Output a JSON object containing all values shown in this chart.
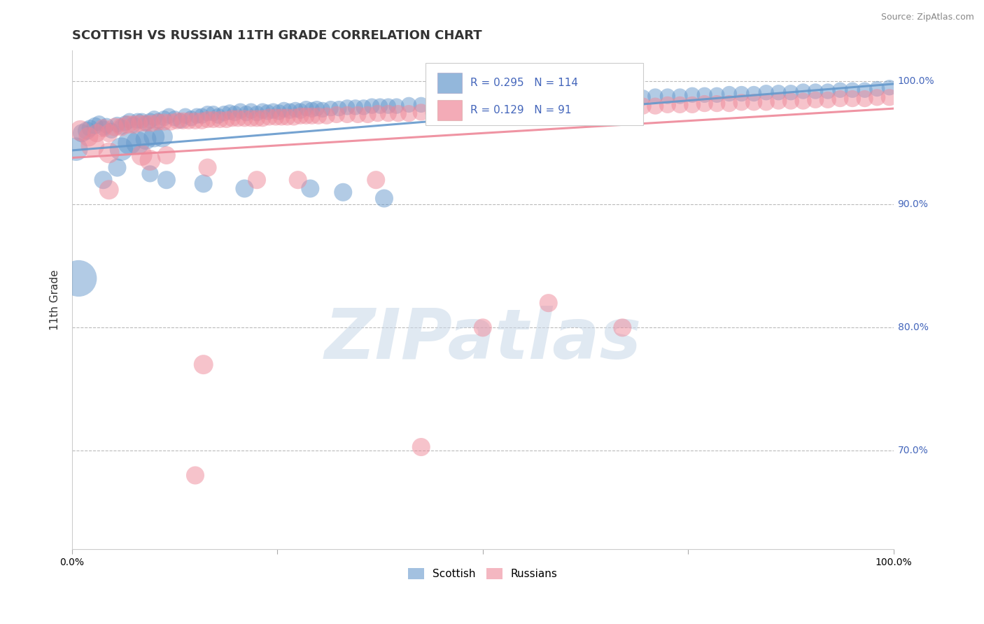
{
  "title": "SCOTTISH VS RUSSIAN 11TH GRADE CORRELATION CHART",
  "source_text": "Source: ZipAtlas.com",
  "ylabel": "11th Grade",
  "xlim": [
    0.0,
    1.0
  ],
  "ylim": [
    0.62,
    1.025
  ],
  "yticks": [
    0.7,
    0.8,
    0.9,
    1.0
  ],
  "ytick_labels": [
    "70.0%",
    "80.0%",
    "90.0%",
    "100.0%"
  ],
  "xticks": [
    0.0,
    0.25,
    0.5,
    0.75,
    1.0
  ],
  "xtick_labels": [
    "0.0%",
    "",
    "",
    "",
    "100.0%"
  ],
  "legend_entries": [
    {
      "label": "Scottish",
      "color": "#6699cc",
      "R": 0.295,
      "N": 114
    },
    {
      "label": "Russians",
      "color": "#ee8899",
      "R": 0.129,
      "N": 91
    }
  ],
  "trend_line_blue": {
    "x0": 0.0,
    "x1": 1.0,
    "y0": 0.944,
    "y1": 0.998
  },
  "trend_line_pink": {
    "x0": 0.0,
    "x1": 1.0,
    "y0": 0.938,
    "y1": 0.978
  },
  "blue_color": "#6699cc",
  "pink_color": "#ee8899",
  "scatter_alpha": 0.5,
  "watermark_text": "ZIPatlas",
  "watermark_color": "#c8d8e8",
  "watermark_alpha": 0.55,
  "bg_color": "#ffffff",
  "grid_color": "#bbbbbb",
  "legend_color": "#4466bb",
  "source_fontsize": 9,
  "title_fontsize": 13,
  "scottish_data": [
    [
      0.005,
      0.945,
      18
    ],
    [
      0.012,
      0.958,
      14
    ],
    [
      0.018,
      0.96,
      14
    ],
    [
      0.022,
      0.962,
      13
    ],
    [
      0.028,
      0.964,
      13
    ],
    [
      0.033,
      0.966,
      12
    ],
    [
      0.038,
      0.962,
      12
    ],
    [
      0.042,
      0.964,
      12
    ],
    [
      0.048,
      0.96,
      12
    ],
    [
      0.055,
      0.965,
      12
    ],
    [
      0.06,
      0.963,
      12
    ],
    [
      0.065,
      0.966,
      12
    ],
    [
      0.07,
      0.968,
      12
    ],
    [
      0.075,
      0.965,
      12
    ],
    [
      0.08,
      0.968,
      12
    ],
    [
      0.085,
      0.968,
      12
    ],
    [
      0.09,
      0.966,
      12
    ],
    [
      0.095,
      0.968,
      12
    ],
    [
      0.1,
      0.97,
      12
    ],
    [
      0.105,
      0.968,
      12
    ],
    [
      0.112,
      0.97,
      12
    ],
    [
      0.118,
      0.972,
      12
    ],
    [
      0.125,
      0.97,
      12
    ],
    [
      0.132,
      0.968,
      12
    ],
    [
      0.138,
      0.972,
      12
    ],
    [
      0.145,
      0.97,
      12
    ],
    [
      0.152,
      0.972,
      12
    ],
    [
      0.158,
      0.972,
      12
    ],
    [
      0.165,
      0.974,
      12
    ],
    [
      0.172,
      0.974,
      12
    ],
    [
      0.178,
      0.972,
      12
    ],
    [
      0.185,
      0.974,
      12
    ],
    [
      0.192,
      0.975,
      12
    ],
    [
      0.198,
      0.974,
      12
    ],
    [
      0.205,
      0.976,
      12
    ],
    [
      0.212,
      0.974,
      12
    ],
    [
      0.218,
      0.976,
      12
    ],
    [
      0.225,
      0.974,
      12
    ],
    [
      0.232,
      0.976,
      12
    ],
    [
      0.238,
      0.975,
      12
    ],
    [
      0.245,
      0.976,
      12
    ],
    [
      0.252,
      0.975,
      12
    ],
    [
      0.258,
      0.977,
      12
    ],
    [
      0.265,
      0.976,
      12
    ],
    [
      0.272,
      0.977,
      12
    ],
    [
      0.278,
      0.976,
      12
    ],
    [
      0.285,
      0.978,
      12
    ],
    [
      0.292,
      0.977,
      12
    ],
    [
      0.298,
      0.978,
      12
    ],
    [
      0.305,
      0.977,
      12
    ],
    [
      0.315,
      0.978,
      12
    ],
    [
      0.325,
      0.978,
      12
    ],
    [
      0.335,
      0.979,
      12
    ],
    [
      0.345,
      0.979,
      12
    ],
    [
      0.355,
      0.979,
      12
    ],
    [
      0.365,
      0.98,
      12
    ],
    [
      0.375,
      0.98,
      12
    ],
    [
      0.385,
      0.98,
      12
    ],
    [
      0.395,
      0.98,
      12
    ],
    [
      0.41,
      0.981,
      12
    ],
    [
      0.425,
      0.981,
      12
    ],
    [
      0.44,
      0.982,
      12
    ],
    [
      0.455,
      0.982,
      12
    ],
    [
      0.47,
      0.982,
      12
    ],
    [
      0.485,
      0.982,
      12
    ],
    [
      0.5,
      0.983,
      12
    ],
    [
      0.515,
      0.983,
      12
    ],
    [
      0.53,
      0.984,
      12
    ],
    [
      0.545,
      0.984,
      12
    ],
    [
      0.56,
      0.984,
      12
    ],
    [
      0.575,
      0.985,
      12
    ],
    [
      0.59,
      0.985,
      12
    ],
    [
      0.605,
      0.985,
      12
    ],
    [
      0.62,
      0.986,
      12
    ],
    [
      0.635,
      0.986,
      12
    ],
    [
      0.65,
      0.986,
      12
    ],
    [
      0.665,
      0.987,
      12
    ],
    [
      0.68,
      0.987,
      12
    ],
    [
      0.695,
      0.987,
      12
    ],
    [
      0.71,
      0.988,
      12
    ],
    [
      0.725,
      0.988,
      12
    ],
    [
      0.74,
      0.988,
      12
    ],
    [
      0.755,
      0.989,
      12
    ],
    [
      0.77,
      0.989,
      12
    ],
    [
      0.785,
      0.989,
      12
    ],
    [
      0.8,
      0.99,
      12
    ],
    [
      0.815,
      0.99,
      12
    ],
    [
      0.83,
      0.99,
      12
    ],
    [
      0.845,
      0.991,
      12
    ],
    [
      0.86,
      0.991,
      12
    ],
    [
      0.875,
      0.991,
      12
    ],
    [
      0.89,
      0.992,
      12
    ],
    [
      0.905,
      0.992,
      12
    ],
    [
      0.92,
      0.992,
      12
    ],
    [
      0.935,
      0.993,
      12
    ],
    [
      0.95,
      0.993,
      12
    ],
    [
      0.965,
      0.993,
      12
    ],
    [
      0.98,
      0.994,
      12
    ],
    [
      0.995,
      0.995,
      12
    ],
    [
      0.06,
      0.945,
      18
    ],
    [
      0.07,
      0.95,
      18
    ],
    [
      0.08,
      0.95,
      18
    ],
    [
      0.09,
      0.953,
      16
    ],
    [
      0.1,
      0.955,
      16
    ],
    [
      0.11,
      0.955,
      16
    ],
    [
      0.008,
      0.84,
      28
    ],
    [
      0.038,
      0.92,
      14
    ],
    [
      0.055,
      0.93,
      14
    ],
    [
      0.095,
      0.925,
      13
    ],
    [
      0.115,
      0.92,
      14
    ],
    [
      0.16,
      0.917,
      14
    ],
    [
      0.21,
      0.913,
      14
    ],
    [
      0.29,
      0.913,
      14
    ],
    [
      0.33,
      0.91,
      14
    ],
    [
      0.38,
      0.905,
      14
    ]
  ],
  "russian_data": [
    [
      0.01,
      0.96,
      16
    ],
    [
      0.02,
      0.955,
      15
    ],
    [
      0.03,
      0.958,
      14
    ],
    [
      0.038,
      0.962,
      14
    ],
    [
      0.045,
      0.958,
      14
    ],
    [
      0.052,
      0.963,
      14
    ],
    [
      0.06,
      0.963,
      14
    ],
    [
      0.068,
      0.965,
      14
    ],
    [
      0.075,
      0.965,
      14
    ],
    [
      0.082,
      0.966,
      13
    ],
    [
      0.09,
      0.966,
      13
    ],
    [
      0.097,
      0.966,
      13
    ],
    [
      0.105,
      0.967,
      13
    ],
    [
      0.112,
      0.967,
      13
    ],
    [
      0.12,
      0.967,
      13
    ],
    [
      0.128,
      0.968,
      13
    ],
    [
      0.135,
      0.968,
      13
    ],
    [
      0.142,
      0.968,
      13
    ],
    [
      0.15,
      0.968,
      13
    ],
    [
      0.158,
      0.968,
      13
    ],
    [
      0.165,
      0.969,
      13
    ],
    [
      0.172,
      0.969,
      13
    ],
    [
      0.18,
      0.969,
      13
    ],
    [
      0.188,
      0.969,
      13
    ],
    [
      0.195,
      0.97,
      13
    ],
    [
      0.202,
      0.97,
      13
    ],
    [
      0.21,
      0.97,
      13
    ],
    [
      0.218,
      0.97,
      13
    ],
    [
      0.225,
      0.97,
      13
    ],
    [
      0.232,
      0.97,
      13
    ],
    [
      0.24,
      0.971,
      13
    ],
    [
      0.248,
      0.971,
      13
    ],
    [
      0.255,
      0.971,
      13
    ],
    [
      0.262,
      0.971,
      13
    ],
    [
      0.27,
      0.971,
      13
    ],
    [
      0.278,
      0.972,
      13
    ],
    [
      0.285,
      0.972,
      13
    ],
    [
      0.292,
      0.972,
      13
    ],
    [
      0.3,
      0.972,
      13
    ],
    [
      0.31,
      0.972,
      13
    ],
    [
      0.322,
      0.973,
      13
    ],
    [
      0.335,
      0.973,
      13
    ],
    [
      0.348,
      0.973,
      13
    ],
    [
      0.36,
      0.973,
      13
    ],
    [
      0.372,
      0.974,
      13
    ],
    [
      0.385,
      0.974,
      13
    ],
    [
      0.397,
      0.974,
      13
    ],
    [
      0.41,
      0.974,
      13
    ],
    [
      0.425,
      0.975,
      13
    ],
    [
      0.44,
      0.975,
      13
    ],
    [
      0.455,
      0.975,
      13
    ],
    [
      0.47,
      0.975,
      13
    ],
    [
      0.485,
      0.976,
      13
    ],
    [
      0.5,
      0.976,
      13
    ],
    [
      0.515,
      0.976,
      13
    ],
    [
      0.53,
      0.977,
      13
    ],
    [
      0.545,
      0.977,
      13
    ],
    [
      0.56,
      0.977,
      13
    ],
    [
      0.575,
      0.977,
      13
    ],
    [
      0.59,
      0.978,
      13
    ],
    [
      0.605,
      0.978,
      13
    ],
    [
      0.62,
      0.978,
      13
    ],
    [
      0.635,
      0.979,
      13
    ],
    [
      0.65,
      0.979,
      13
    ],
    [
      0.665,
      0.979,
      13
    ],
    [
      0.68,
      0.98,
      13
    ],
    [
      0.695,
      0.98,
      13
    ],
    [
      0.71,
      0.98,
      13
    ],
    [
      0.725,
      0.981,
      13
    ],
    [
      0.74,
      0.981,
      13
    ],
    [
      0.755,
      0.981,
      13
    ],
    [
      0.77,
      0.982,
      13
    ],
    [
      0.785,
      0.982,
      13
    ],
    [
      0.8,
      0.982,
      13
    ],
    [
      0.815,
      0.983,
      13
    ],
    [
      0.83,
      0.983,
      13
    ],
    [
      0.845,
      0.983,
      13
    ],
    [
      0.86,
      0.984,
      13
    ],
    [
      0.875,
      0.984,
      13
    ],
    [
      0.89,
      0.984,
      13
    ],
    [
      0.905,
      0.985,
      13
    ],
    [
      0.92,
      0.985,
      13
    ],
    [
      0.935,
      0.986,
      13
    ],
    [
      0.95,
      0.986,
      13
    ],
    [
      0.965,
      0.986,
      13
    ],
    [
      0.98,
      0.987,
      13
    ],
    [
      0.995,
      0.987,
      13
    ],
    [
      0.025,
      0.948,
      18
    ],
    [
      0.045,
      0.942,
      16
    ],
    [
      0.085,
      0.94,
      16
    ],
    [
      0.095,
      0.936,
      16
    ],
    [
      0.045,
      0.912,
      15
    ],
    [
      0.115,
      0.94,
      14
    ],
    [
      0.165,
      0.93,
      14
    ],
    [
      0.225,
      0.92,
      14
    ],
    [
      0.275,
      0.92,
      14
    ],
    [
      0.37,
      0.92,
      14
    ],
    [
      0.5,
      0.8,
      14
    ],
    [
      0.58,
      0.82,
      14
    ],
    [
      0.67,
      0.8,
      14
    ],
    [
      0.16,
      0.77,
      15
    ],
    [
      0.425,
      0.703,
      14
    ],
    [
      0.15,
      0.68,
      14
    ]
  ]
}
